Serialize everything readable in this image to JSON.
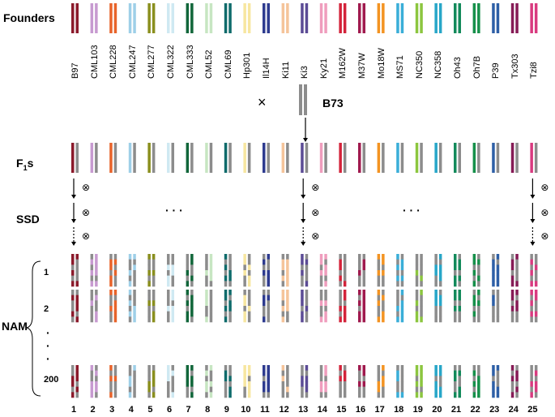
{
  "labels": {
    "founders": "Founders",
    "f1_main": "F",
    "f1_sub": "1",
    "f1_suffix": "s",
    "ssd": "SSD",
    "nam": "NAM",
    "b73": "B73",
    "cross": "×",
    "selfing": "⊗",
    "ellipsis": "· · ·",
    "vdots": "·"
  },
  "families": [
    "1",
    "2",
    "200"
  ],
  "founders": [
    {
      "name": "B97",
      "color": "#8b1a2b"
    },
    {
      "name": "CML103",
      "color": "#c79ad0"
    },
    {
      "name": "CML228",
      "color": "#e8632a"
    },
    {
      "name": "CML247",
      "color": "#9ecfe8"
    },
    {
      "name": "CML277",
      "color": "#8a8f1e"
    },
    {
      "name": "CML322",
      "color": "#cfe9f2"
    },
    {
      "name": "CML333",
      "color": "#11663a"
    },
    {
      "name": "CML52",
      "color": "#c7e6c2"
    },
    {
      "name": "CML69",
      "color": "#0f6b6b"
    },
    {
      "name": "Hp301",
      "color": "#f7e6a0"
    },
    {
      "name": "Il14H",
      "color": "#2e3b8f"
    },
    {
      "name": "Ki11",
      "color": "#f5c49a"
    },
    {
      "name": "Ki3",
      "color": "#5b4b95"
    },
    {
      "name": "Ky21",
      "color": "#ef9dbd"
    },
    {
      "name": "M162W",
      "color": "#d3233a"
    },
    {
      "name": "M37W",
      "color": "#a01a4e"
    },
    {
      "name": "Mo18W",
      "color": "#f39322"
    },
    {
      "name": "MS71",
      "color": "#3aaed8"
    },
    {
      "name": "NC350",
      "color": "#8cc63f"
    },
    {
      "name": "NC358",
      "color": "#27a6c8"
    },
    {
      "name": "Oh43",
      "color": "#138a5b"
    },
    {
      "name": "Oh7B",
      "color": "#16904a"
    },
    {
      "name": "P39",
      "color": "#2d5fa6"
    },
    {
      "name": "Tx303",
      "color": "#861b56"
    },
    {
      "name": "Tzi8",
      "color": "#d93a7f"
    }
  ],
  "column_numbers": [
    "1",
    "2",
    "3",
    "4",
    "5",
    "6",
    "7",
    "8",
    "9",
    "10",
    "11",
    "12",
    "13",
    "14",
    "15",
    "16",
    "17",
    "18",
    "19",
    "20",
    "21",
    "22",
    "23",
    "24",
    "25"
  ],
  "colors": {
    "b73": "#8c8c8c",
    "arrow": "#000000"
  }
}
